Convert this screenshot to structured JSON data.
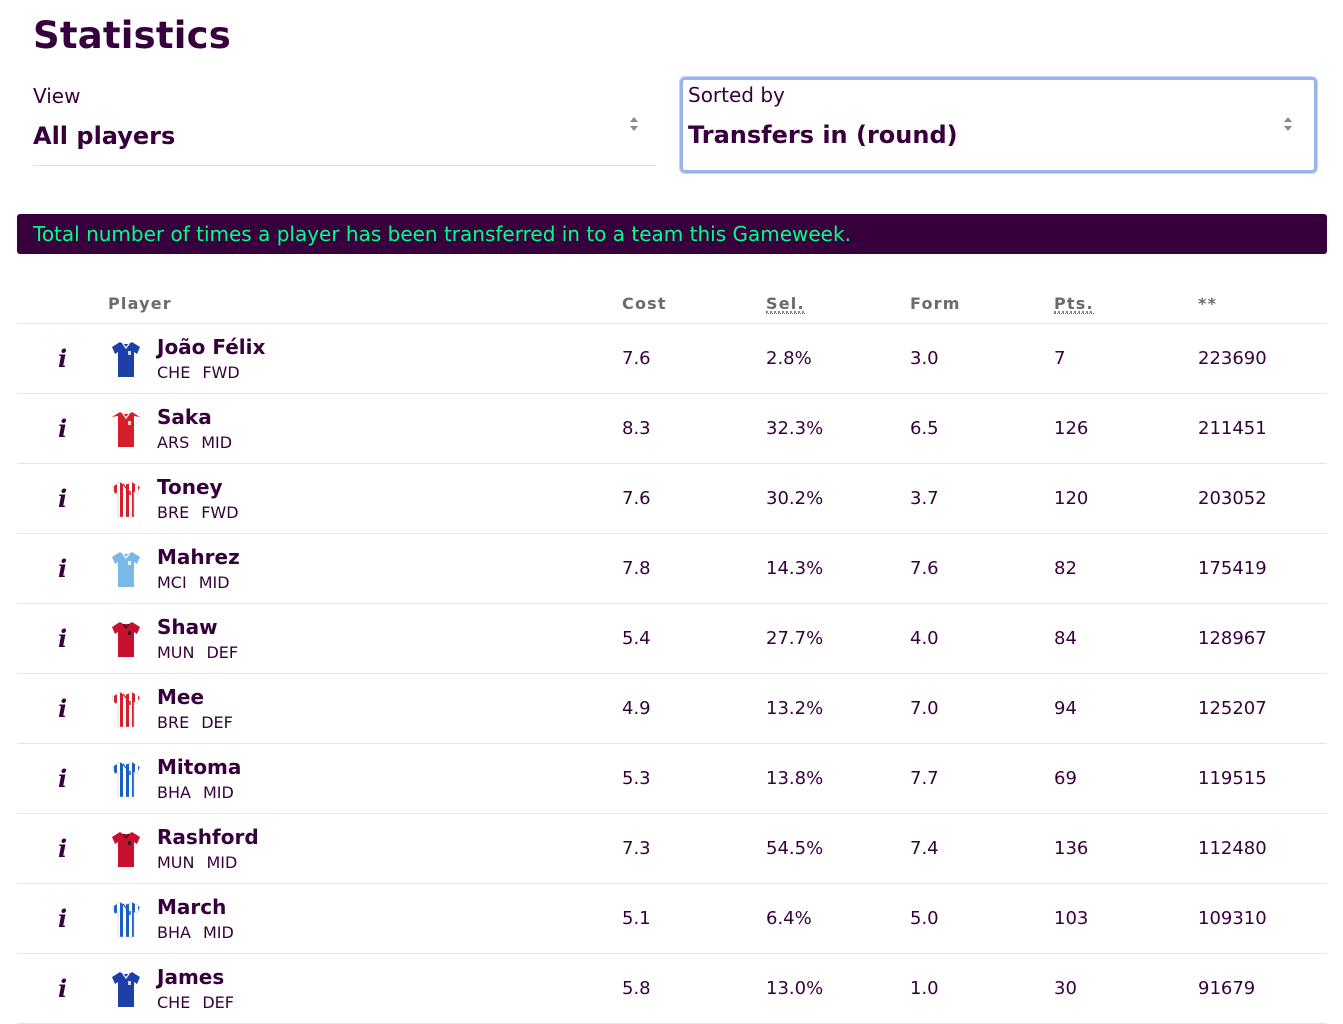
{
  "page": {
    "title": "Statistics"
  },
  "filters": {
    "view": {
      "label": "View",
      "value": "All players"
    },
    "sort": {
      "label": "Sorted by",
      "value": "Transfers in (round)"
    }
  },
  "banner": {
    "text": "Total number of times a player has been transferred in to a team this Gameweek."
  },
  "table": {
    "headers": {
      "player": "Player",
      "cost": "Cost",
      "sel": "Sel.",
      "form": "Form",
      "pts": "Pts.",
      "stat": "**"
    },
    "rows": [
      {
        "name": "João Félix",
        "team": "CHE",
        "pos": "FWD",
        "cost": "7.6",
        "sel": "2.8%",
        "form": "3.0",
        "pts": "7",
        "stat": "223690",
        "kit": "che"
      },
      {
        "name": "Saka",
        "team": "ARS",
        "pos": "MID",
        "cost": "8.3",
        "sel": "32.3%",
        "form": "6.5",
        "pts": "126",
        "stat": "211451",
        "kit": "ars"
      },
      {
        "name": "Toney",
        "team": "BRE",
        "pos": "FWD",
        "cost": "7.6",
        "sel": "30.2%",
        "form": "3.7",
        "pts": "120",
        "stat": "203052",
        "kit": "bre"
      },
      {
        "name": "Mahrez",
        "team": "MCI",
        "pos": "MID",
        "cost": "7.8",
        "sel": "14.3%",
        "form": "7.6",
        "pts": "82",
        "stat": "175419",
        "kit": "mci"
      },
      {
        "name": "Shaw",
        "team": "MUN",
        "pos": "DEF",
        "cost": "5.4",
        "sel": "27.7%",
        "form": "4.0",
        "pts": "84",
        "stat": "128967",
        "kit": "mun"
      },
      {
        "name": "Mee",
        "team": "BRE",
        "pos": "DEF",
        "cost": "4.9",
        "sel": "13.2%",
        "form": "7.0",
        "pts": "94",
        "stat": "125207",
        "kit": "bre"
      },
      {
        "name": "Mitoma",
        "team": "BHA",
        "pos": "MID",
        "cost": "5.3",
        "sel": "13.8%",
        "form": "7.7",
        "pts": "69",
        "stat": "119515",
        "kit": "bha"
      },
      {
        "name": "Rashford",
        "team": "MUN",
        "pos": "MID",
        "cost": "7.3",
        "sel": "54.5%",
        "form": "7.4",
        "pts": "136",
        "stat": "112480",
        "kit": "mun"
      },
      {
        "name": "March",
        "team": "BHA",
        "pos": "MID",
        "cost": "5.1",
        "sel": "6.4%",
        "form": "5.0",
        "pts": "103",
        "stat": "109310",
        "kit": "bha"
      },
      {
        "name": "James",
        "team": "CHE",
        "pos": "DEF",
        "cost": "5.8",
        "sel": "13.0%",
        "form": "1.0",
        "pts": "30",
        "stat": "91679",
        "kit": "che"
      }
    ]
  },
  "icons": {
    "info": "info-icon",
    "select_arrows": "sort-arrows-icon",
    "shirt": "team-shirt-icon"
  },
  "kits": {
    "che": {
      "style": "solid",
      "main": "#1d3fa8",
      "trim": "#ffffff"
    },
    "ars": {
      "style": "sleeves",
      "main": "#d51f2a",
      "trim": "#ffffff"
    },
    "bre": {
      "style": "stripes",
      "main": "#ffffff",
      "trim": "#d51f2a"
    },
    "mci": {
      "style": "solid",
      "main": "#7ab8e6",
      "trim": "#ffffff"
    },
    "mun": {
      "style": "solid",
      "main": "#c8102e",
      "trim": "#1a1a1a"
    },
    "bha": {
      "style": "stripes",
      "main": "#ffffff",
      "trim": "#1c5fc4"
    }
  },
  "colors": {
    "primary": "#37003c",
    "accent": "#00ff87",
    "focus_border": "#98b4ee",
    "header_text": "#6b6b6b",
    "divider": "#e6e6e6"
  }
}
